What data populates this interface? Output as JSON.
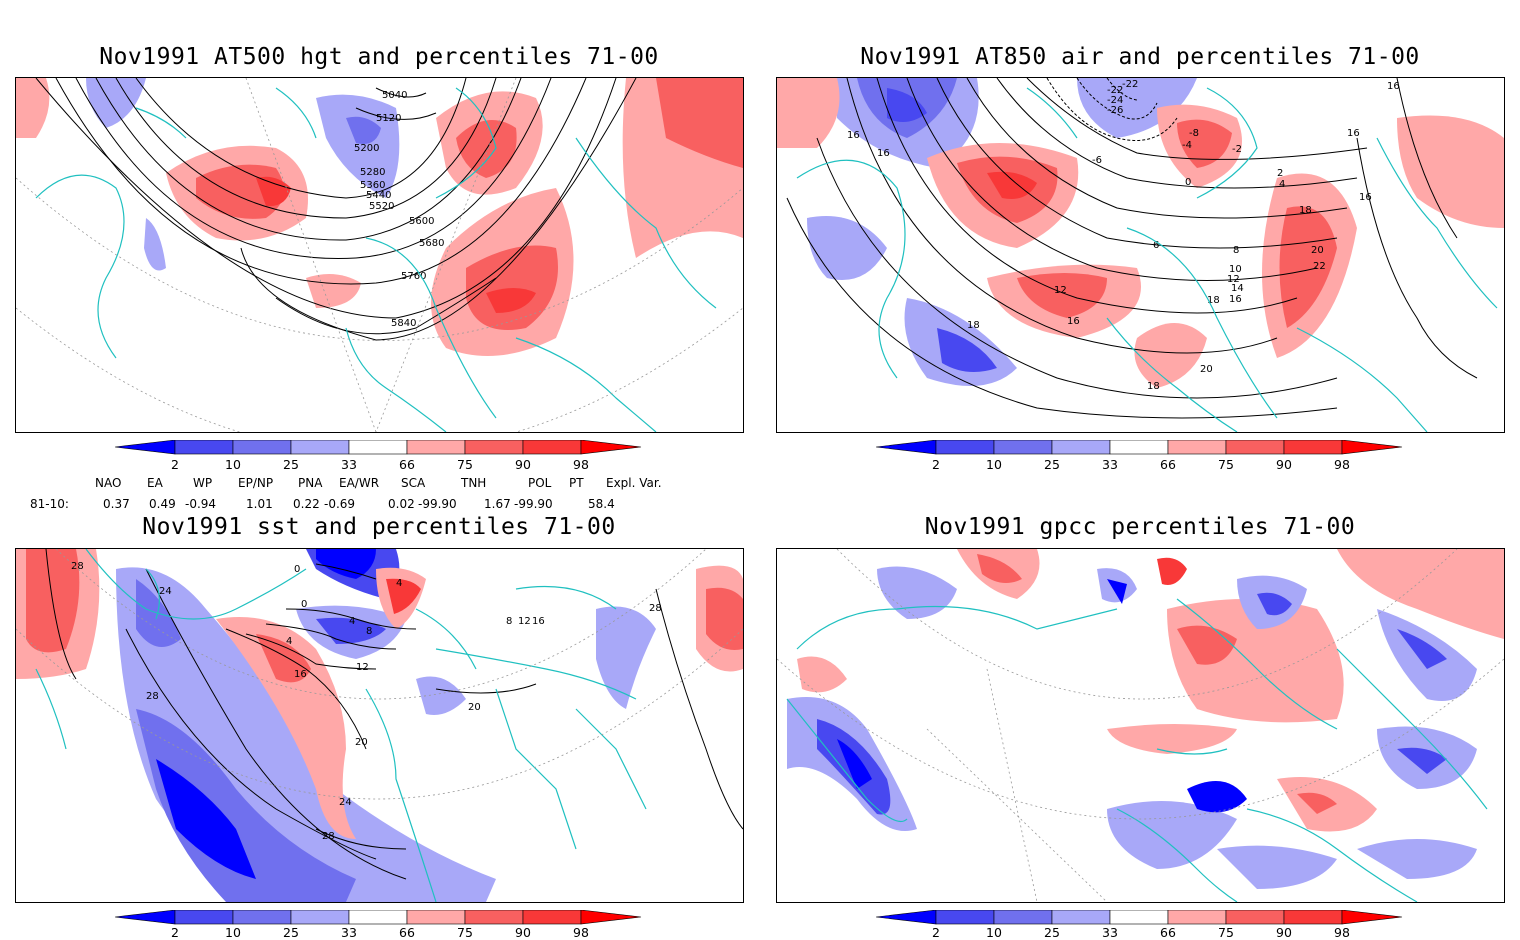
{
  "panels": [
    {
      "id": "p1",
      "title": "Nov1991 AT500 hgt and percentiles 71-00",
      "contour_labels": [
        "5040",
        "5120",
        "5200",
        "5280",
        "5360",
        "5440",
        "5520",
        "5600",
        "5680",
        "5760",
        "5840"
      ]
    },
    {
      "id": "p2",
      "title": "Nov1991 AT850 air and percentiles 71-00",
      "contour_labels": [
        "-22",
        "-22",
        "-24",
        "-26",
        "-6",
        "-4",
        "-2",
        "-8",
        "0",
        "2",
        "4",
        "16",
        "16",
        "16",
        "16",
        "16",
        "18",
        "20",
        "22",
        "12",
        "6",
        "8",
        "10",
        "12",
        "14",
        "16",
        "18",
        "16",
        "18",
        "20",
        "18"
      ]
    },
    {
      "id": "p3",
      "title": "Nov1991 sst and percentiles 71-00",
      "contour_labels": [
        "28",
        "24",
        "28",
        "0",
        "0",
        "4",
        "4",
        "8",
        "4",
        "12",
        "16",
        "20",
        "20",
        "24",
        "28",
        "28",
        "8",
        "12",
        "16"
      ]
    },
    {
      "id": "p4",
      "title": "Nov1991 gpcc percentiles 71-00",
      "contour_labels": []
    }
  ],
  "colorbar": {
    "labels": [
      "2",
      "10",
      "25",
      "33",
      "66",
      "75",
      "90",
      "98"
    ],
    "colors": [
      "#0000ff",
      "#4848f0",
      "#7070ee",
      "#a8a8f8",
      "#ffa8a8",
      "#f86060",
      "#f83838",
      "#ff0000"
    ]
  },
  "indices": {
    "headers": [
      "NAO",
      "EA",
      "WP",
      "EP/NP",
      "PNA",
      "EA/WR",
      "SCA",
      "TNH",
      "POL",
      "PT",
      "Expl. Var."
    ],
    "row_label": "81-10:",
    "values": [
      "0.37",
      "0.49",
      "-0.94",
      "1.01",
      "0.22",
      "-0.69",
      "0.02",
      "-99.90",
      "1.67",
      "-99.90",
      "58.4"
    ]
  }
}
